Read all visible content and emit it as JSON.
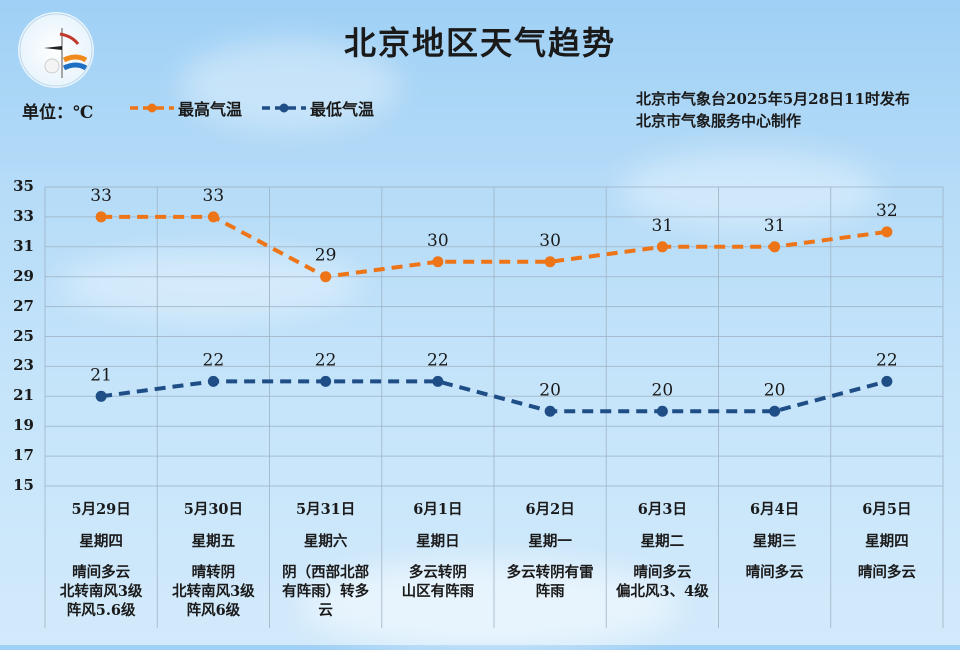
{
  "header": {
    "title": "北京地区天气趋势",
    "unit_label": "单位：℃",
    "issuer_line1": "北京市气象台2025年5月28日11时发布",
    "issuer_line2": "北京市气象服务中心制作",
    "logo": "beijing-meteorological-service-logo"
  },
  "legend": [
    {
      "label": "最高气温",
      "color": "#ee7418"
    },
    {
      "label": "最低气温",
      "color": "#1f4e86"
    }
  ],
  "days": [
    {
      "date": "5月29日",
      "weekday": "星期四",
      "weather": "晴间多云\n北转南风3级\n阵风5.6级"
    },
    {
      "date": "5月30日",
      "weekday": "星期五",
      "weather": "晴转阴\n北转南风3级\n阵风6级"
    },
    {
      "date": "5月31日",
      "weekday": "星期六",
      "weather": "阴（西部北部\n有阵雨）转多\n云"
    },
    {
      "date": "6月1日",
      "weekday": "星期日",
      "weather": "多云转阴\n山区有阵雨"
    },
    {
      "date": "6月2日",
      "weekday": "星期一",
      "weather": "多云转阴有雷\n阵雨"
    },
    {
      "date": "6月3日",
      "weekday": "星期二",
      "weather": "晴间多云\n偏北风3、4级"
    },
    {
      "date": "6月4日",
      "weekday": "星期三",
      "weather": "晴间多云"
    },
    {
      "date": "6月5日",
      "weekday": "星期四",
      "weather": "晴间多云"
    }
  ],
  "chart_data": {
    "type": "line",
    "title": "北京地区天气趋势",
    "xlabel": "",
    "ylabel": "单位：℃",
    "categories": [
      "5月29日",
      "5月30日",
      "5月31日",
      "6月1日",
      "6月2日",
      "6月3日",
      "6月4日",
      "6月5日"
    ],
    "series": [
      {
        "name": "最高气温",
        "color": "#ee7418",
        "style": "dashed",
        "values": [
          33,
          33,
          29,
          30,
          30,
          31,
          31,
          32
        ]
      },
      {
        "name": "最低气温",
        "color": "#1f4e86",
        "style": "dashed",
        "values": [
          21,
          22,
          22,
          22,
          20,
          20,
          20,
          22
        ]
      }
    ],
    "yticks": [
      35,
      33,
      31,
      29,
      27,
      25,
      23,
      21,
      19,
      17,
      15
    ],
    "ylim": [
      15,
      35
    ],
    "grid": true,
    "legend_position": "top-left",
    "data_labels": true
  }
}
